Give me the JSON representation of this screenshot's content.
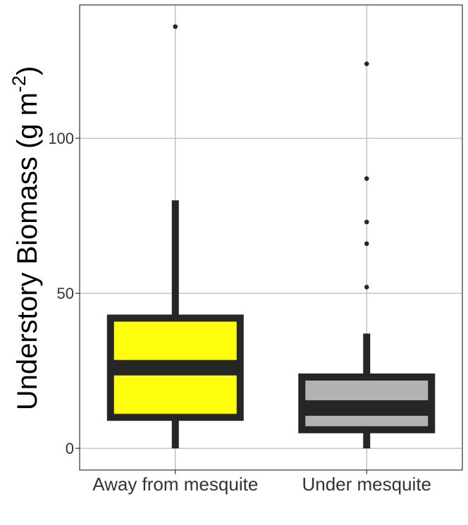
{
  "chart_data": {
    "type": "boxplot",
    "title": "",
    "xlabel": "",
    "ylabel_main": "Understory Biomass (g m",
    "ylabel_sup": "-2",
    "ylabel_close": ")",
    "ylim": [
      -7,
      143
    ],
    "yticks": [
      0,
      50,
      100
    ],
    "ytick_labels": [
      "0",
      "50",
      "100"
    ],
    "grid": true,
    "categories": [
      "Away from mesquite",
      "Under mesquite"
    ],
    "boxes": [
      {
        "category": "Away from mesquite",
        "fill": "#ffff0d",
        "whisker_low": 0,
        "q1": 10,
        "median": 26,
        "q3": 42,
        "whisker_high": 80,
        "outliers": [
          136
        ]
      },
      {
        "category": "Under mesquite",
        "fill": "#b2b2b2",
        "whisker_low": 0,
        "q1": 6,
        "median": 13,
        "q3": 23,
        "whisker_high": 37,
        "outliers": [
          124,
          87,
          73,
          66,
          52
        ]
      }
    ],
    "colors": {
      "box_outline": "#262626",
      "grid": "#b3b3b3",
      "panel_border": "#333333"
    }
  }
}
